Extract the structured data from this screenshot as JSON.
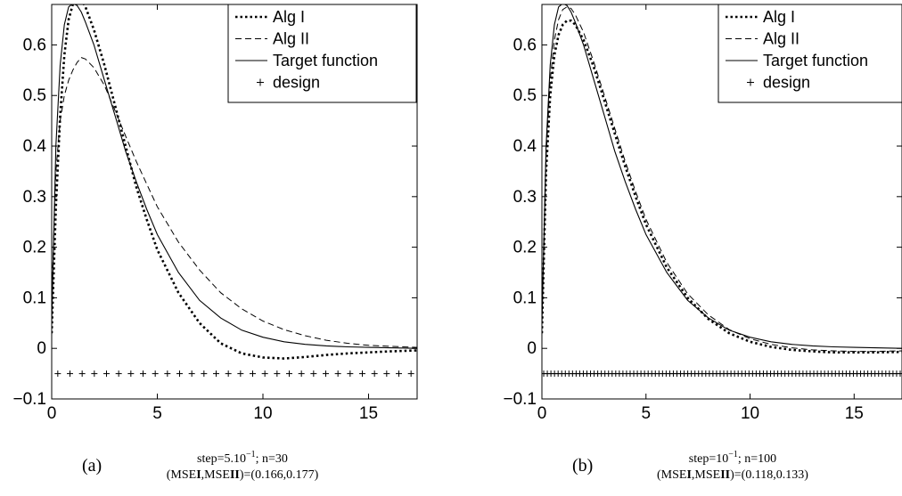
{
  "chart_data": [
    {
      "type": "line",
      "title": "",
      "xlabel": "",
      "ylabel": "",
      "xlim": [
        0,
        17.3
      ],
      "ylim": [
        -0.1,
        0.68
      ],
      "xticks": [
        "0",
        "5",
        "10",
        "15"
      ],
      "yticks": [
        "−0.1",
        "0",
        "0.1",
        "0.2",
        "0.3",
        "0.4",
        "0.5",
        "0.6"
      ],
      "grid": false,
      "legend_position": "top-right",
      "legend": [
        "Alg I",
        "Alg II",
        "Target function",
        "design"
      ],
      "series": [
        {
          "name": "Alg I",
          "style": "dotted",
          "x": [
            0,
            0.2,
            0.4,
            0.6,
            0.8,
            1.0,
            1.2,
            1.4,
            1.6,
            2.0,
            2.5,
            3,
            3.5,
            4,
            4.5,
            5,
            6,
            7,
            8,
            9,
            10,
            11,
            12,
            13,
            14,
            15,
            16,
            17.3
          ],
          "y": [
            0.03,
            0.28,
            0.46,
            0.58,
            0.65,
            0.68,
            0.695,
            0.69,
            0.675,
            0.63,
            0.56,
            0.48,
            0.4,
            0.32,
            0.255,
            0.195,
            0.11,
            0.05,
            0.01,
            -0.01,
            -0.018,
            -0.02,
            -0.017,
            -0.013,
            -0.01,
            -0.008,
            -0.006,
            -0.004
          ]
        },
        {
          "name": "Alg II",
          "style": "dashed",
          "x": [
            0,
            0.2,
            0.4,
            0.6,
            0.8,
            1.0,
            1.2,
            1.4,
            1.6,
            2.0,
            2.5,
            3,
            3.5,
            4,
            4.5,
            5,
            6,
            7,
            8,
            9,
            10,
            11,
            12,
            13,
            14,
            15,
            16,
            17.3
          ],
          "y": [
            0.1,
            0.35,
            0.45,
            0.5,
            0.53,
            0.55,
            0.565,
            0.575,
            0.572,
            0.555,
            0.52,
            0.47,
            0.42,
            0.37,
            0.325,
            0.28,
            0.21,
            0.155,
            0.11,
            0.078,
            0.054,
            0.037,
            0.025,
            0.016,
            0.01,
            0.006,
            0.004,
            0.002
          ]
        },
        {
          "name": "Target function",
          "style": "solid",
          "x": [
            0,
            0.2,
            0.4,
            0.6,
            0.8,
            1.0,
            1.2,
            1.4,
            1.6,
            2.0,
            2.5,
            3,
            3.5,
            4,
            4.5,
            5,
            6,
            7,
            8,
            9,
            10,
            11,
            12,
            13,
            14,
            15,
            16,
            17.3
          ],
          "y": [
            0.05,
            0.4,
            0.56,
            0.64,
            0.675,
            0.682,
            0.678,
            0.665,
            0.645,
            0.6,
            0.53,
            0.46,
            0.39,
            0.33,
            0.275,
            0.225,
            0.15,
            0.095,
            0.06,
            0.036,
            0.022,
            0.013,
            0.008,
            0.005,
            0.003,
            0.002,
            0.001,
            0.0
          ]
        },
        {
          "name": "design",
          "style": "plus",
          "count": 30,
          "y": -0.05
        }
      ],
      "caption": {
        "tag": "(a)",
        "line1": "step=5.10",
        "line1_exp": "−1",
        "line1_rest": "; n=30",
        "line2_pre": "(MSE",
        "line2_b1": "I",
        "line2_mid": ",MSE",
        "line2_b2": "II",
        "line2_post": ")=(0.166,0.177)"
      }
    },
    {
      "type": "line",
      "title": "",
      "xlabel": "",
      "ylabel": "",
      "xlim": [
        0,
        17.3
      ],
      "ylim": [
        -0.1,
        0.68
      ],
      "xticks": [
        "0",
        "5",
        "10",
        "15"
      ],
      "yticks": [
        "−0.1",
        "0",
        "0.1",
        "0.2",
        "0.3",
        "0.4",
        "0.5",
        "0.6"
      ],
      "grid": false,
      "legend_position": "top-right",
      "legend": [
        "Alg I",
        "Alg II",
        "Target function",
        "design"
      ],
      "series": [
        {
          "name": "Alg I",
          "style": "dotted",
          "x": [
            0,
            0.2,
            0.4,
            0.6,
            0.8,
            1.0,
            1.2,
            1.4,
            1.6,
            2.0,
            2.5,
            3,
            3.5,
            4,
            4.5,
            5,
            6,
            7,
            8,
            9,
            10,
            11,
            12,
            13,
            14,
            15,
            16,
            17.3
          ],
          "y": [
            0.03,
            0.35,
            0.5,
            0.58,
            0.62,
            0.64,
            0.648,
            0.648,
            0.64,
            0.61,
            0.555,
            0.49,
            0.425,
            0.36,
            0.3,
            0.245,
            0.16,
            0.1,
            0.058,
            0.03,
            0.013,
            0.003,
            -0.003,
            -0.006,
            -0.008,
            -0.008,
            -0.008,
            -0.007
          ]
        },
        {
          "name": "Alg II",
          "style": "dashed",
          "x": [
            0,
            0.2,
            0.4,
            0.6,
            0.8,
            1.0,
            1.2,
            1.4,
            1.6,
            2.0,
            2.5,
            3,
            3.5,
            4,
            4.5,
            5,
            6,
            7,
            8,
            9,
            10,
            11,
            12,
            13,
            14,
            15,
            16,
            17.3
          ],
          "y": [
            0.05,
            0.38,
            0.53,
            0.61,
            0.65,
            0.67,
            0.675,
            0.672,
            0.66,
            0.625,
            0.565,
            0.5,
            0.435,
            0.37,
            0.31,
            0.255,
            0.17,
            0.108,
            0.066,
            0.037,
            0.019,
            0.008,
            0.001,
            -0.003,
            -0.005,
            -0.006,
            -0.006,
            -0.005
          ]
        },
        {
          "name": "Target function",
          "style": "solid",
          "x": [
            0,
            0.2,
            0.4,
            0.6,
            0.8,
            1.0,
            1.2,
            1.4,
            1.6,
            2.0,
            2.5,
            3,
            3.5,
            4,
            4.5,
            5,
            6,
            7,
            8,
            9,
            10,
            11,
            12,
            13,
            14,
            15,
            16,
            17.3
          ],
          "y": [
            0.05,
            0.4,
            0.56,
            0.64,
            0.675,
            0.682,
            0.678,
            0.665,
            0.645,
            0.6,
            0.53,
            0.46,
            0.39,
            0.33,
            0.275,
            0.225,
            0.15,
            0.095,
            0.06,
            0.036,
            0.022,
            0.013,
            0.008,
            0.005,
            0.003,
            0.002,
            0.001,
            0.0
          ]
        },
        {
          "name": "design",
          "style": "plus",
          "count": 100,
          "y": -0.05
        }
      ],
      "caption": {
        "tag": "(b)",
        "line1": "step=10",
        "line1_exp": "−1",
        "line1_rest": "; n=100",
        "line2_pre": "(MSE",
        "line2_b1": "I",
        "line2_mid": ",MSE",
        "line2_b2": "II",
        "line2_post": ")=(0.118,0.133)"
      }
    }
  ]
}
